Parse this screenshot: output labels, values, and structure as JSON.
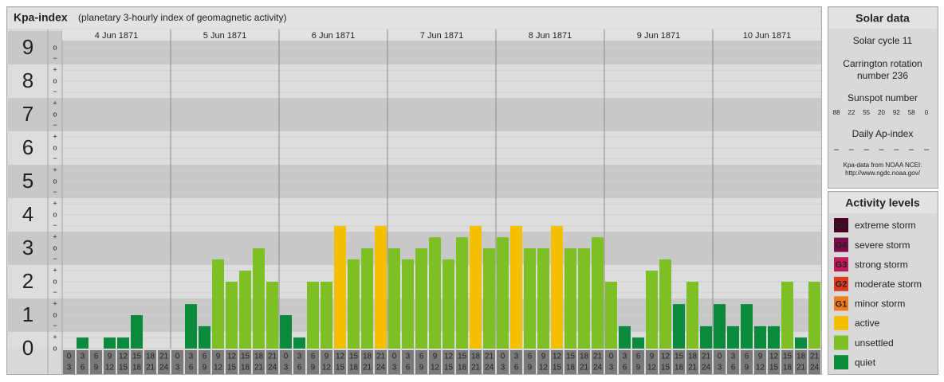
{
  "chart_data": {
    "type": "bar",
    "title": "Kpa-index",
    "subtitle": "(planetary 3-hourly index of geomagnetic activity)",
    "days": [
      "4 Jun 1871",
      "5 Jun 1871",
      "6 Jun 1871",
      "7 Jun 1871",
      "8 Jun 1871",
      "9 Jun 1871",
      "10 Jun 1871"
    ],
    "hour_ticks": [
      0,
      3,
      6,
      9,
      12,
      15,
      18,
      21,
      24
    ],
    "values": [
      0,
      0.33,
      0,
      0.33,
      0.33,
      1,
      0,
      0,
      0,
      1.33,
      0.67,
      2.67,
      2,
      2.33,
      3,
      2,
      1,
      0.33,
      2,
      2,
      3.67,
      2.67,
      3,
      3.67,
      3,
      2.67,
      3,
      3.33,
      2.67,
      3.33,
      3.67,
      3,
      3.33,
      3.67,
      3,
      3,
      3.67,
      3,
      3,
      3.33,
      2,
      0.67,
      0.33,
      2.33,
      2.67,
      1.33,
      2,
      0.67,
      1.33,
      0.67,
      1.33,
      0.67,
      0.67,
      2,
      0.33,
      2
    ],
    "colors": [
      "#0a8a3c",
      "#0a8a3c",
      "#0a8a3c",
      "#0a8a3c",
      "#0a8a3c",
      "#0a8a3c",
      "#0a8a3c",
      "#0a8a3c",
      "#0a8a3c",
      "#0a8a3c",
      "#0a8a3c",
      "#7cc023",
      "#7cc023",
      "#7cc023",
      "#7cc023",
      "#7cc023",
      "#0a8a3c",
      "#0a8a3c",
      "#7cc023",
      "#7cc023",
      "#f5c000",
      "#7cc023",
      "#7cc023",
      "#f5c000",
      "#7cc023",
      "#7cc023",
      "#7cc023",
      "#7cc023",
      "#7cc023",
      "#7cc023",
      "#f5c000",
      "#7cc023",
      "#7cc023",
      "#f5c000",
      "#7cc023",
      "#7cc023",
      "#f5c000",
      "#7cc023",
      "#7cc023",
      "#7cc023",
      "#7cc023",
      "#0a8a3c",
      "#0a8a3c",
      "#7cc023",
      "#7cc023",
      "#0a8a3c",
      "#7cc023",
      "#0a8a3c",
      "#0a8a3c",
      "#0a8a3c",
      "#0a8a3c",
      "#0a8a3c",
      "#0a8a3c",
      "#7cc023",
      "#0a8a3c",
      "#7cc023"
    ],
    "ylim": [
      0,
      9.5
    ],
    "yticks": [
      0,
      1,
      2,
      3,
      4,
      5,
      6,
      7,
      8,
      9
    ],
    "minor_ticks": [
      {
        "value": 0,
        "label": "o"
      },
      {
        "value": 0.33,
        "label": "+"
      },
      {
        "value": 0.67,
        "label": "−"
      },
      {
        "value": 1,
        "label": "o"
      },
      {
        "value": 1.33,
        "label": "+"
      },
      {
        "value": 1.67,
        "label": "−"
      },
      {
        "value": 2,
        "label": "o"
      },
      {
        "value": 2.33,
        "label": "+"
      },
      {
        "value": 2.67,
        "label": "−"
      },
      {
        "value": 3,
        "label": "o"
      },
      {
        "value": 3.33,
        "label": "+"
      },
      {
        "value": 3.67,
        "label": "−"
      },
      {
        "value": 4,
        "label": "o"
      },
      {
        "value": 4.33,
        "label": "+"
      },
      {
        "value": 4.67,
        "label": "−"
      },
      {
        "value": 5,
        "label": "o"
      },
      {
        "value": 5.33,
        "label": "+"
      },
      {
        "value": 5.67,
        "label": "−"
      },
      {
        "value": 6,
        "label": "o"
      },
      {
        "value": 6.33,
        "label": "+"
      },
      {
        "value": 6.67,
        "label": "−"
      },
      {
        "value": 7,
        "label": "o"
      },
      {
        "value": 7.33,
        "label": "+"
      },
      {
        "value": 7.67,
        "label": "−"
      },
      {
        "value": 8,
        "label": "o"
      },
      {
        "value": 8.33,
        "label": "+"
      },
      {
        "value": 8.67,
        "label": "−"
      },
      {
        "value": 9,
        "label": "o"
      }
    ],
    "grid": true
  },
  "solar_data": {
    "title": "Solar data",
    "cycle": "Solar cycle 11",
    "carrington": [
      "Carrington rotation",
      "number 236"
    ],
    "sunspot_title": "Sunspot number",
    "sunspot_numbers": [
      88,
      22,
      55,
      20,
      92,
      58,
      0
    ],
    "ap_title": "Daily Ap-index",
    "ap_values": [
      "–",
      "–",
      "–",
      "–",
      "–",
      "–",
      "–"
    ],
    "source": [
      "Kpa-data from NOAA NCEI:",
      "http://www.ngdc.noaa.gov/"
    ]
  },
  "activity_levels": {
    "title": "Activity levels",
    "items": [
      {
        "code": "G5",
        "label": "extreme storm",
        "color": "#4a0024"
      },
      {
        "code": "G4",
        "label": "severe storm",
        "color": "#7a0a48"
      },
      {
        "code": "G3",
        "label": "strong storm",
        "color": "#c0185a"
      },
      {
        "code": "G2",
        "label": "moderate storm",
        "color": "#de3a1e"
      },
      {
        "code": "G1",
        "label": "minor storm",
        "color": "#ee7a1a"
      },
      {
        "code": null,
        "label": "active",
        "color": "#f5c000"
      },
      {
        "code": null,
        "label": "unsettled",
        "color": "#7cc023"
      },
      {
        "code": null,
        "label": "quiet",
        "color": "#0a8a3c"
      }
    ]
  }
}
